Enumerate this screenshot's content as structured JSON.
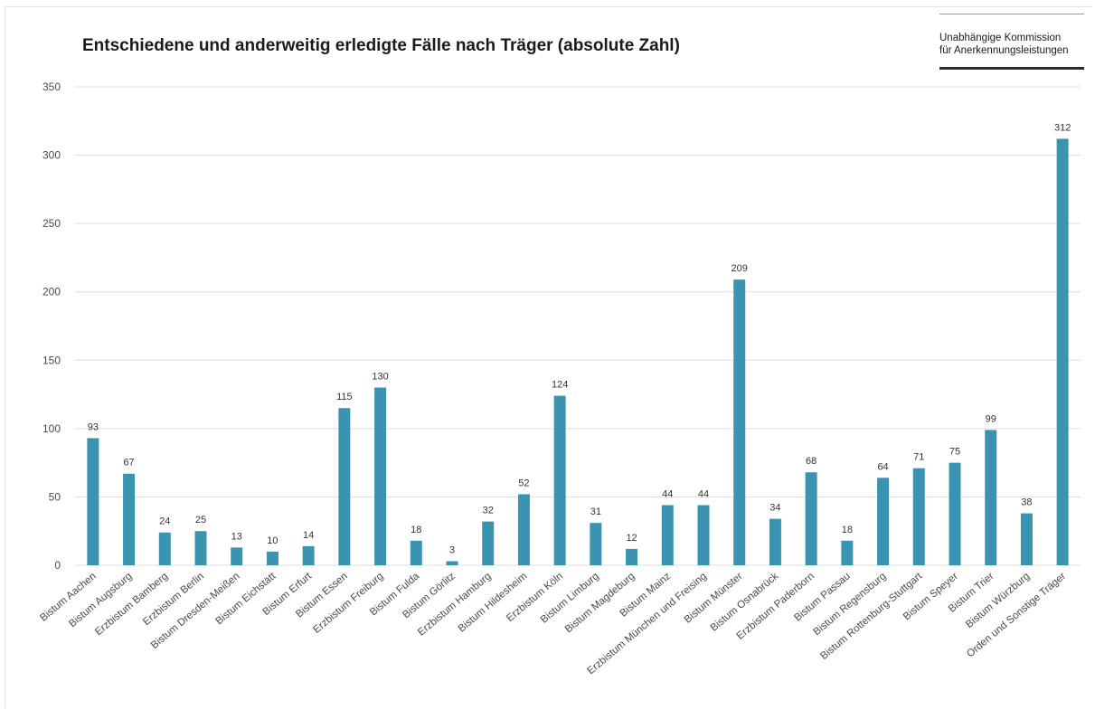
{
  "header": {
    "title": "Entschiedene und anderweitig erledigte Fälle nach Träger (absolute Zahl)",
    "brand_line1": "Unabhängige Kommission",
    "brand_line2": "für Anerkennungsleistungen"
  },
  "colors": {
    "bar": "#3a93b0",
    "grid": "#dcdcdc",
    "axis_text": "#4a4a4a"
  },
  "chart_data": {
    "type": "bar",
    "title": "Entschiedene und anderweitig erledigte Fälle nach Träger (absolute Zahl)",
    "xlabel": "",
    "ylabel": "",
    "ylim": [
      0,
      350
    ],
    "yticks": [
      0,
      50,
      100,
      150,
      200,
      250,
      300,
      350
    ],
    "grid": true,
    "data_labels": true,
    "categories": [
      "Bistum Aachen",
      "Bistum Augsburg",
      "Erzbistum Bamberg",
      "Erzbistum Berlin",
      "Bistum Dresden-Meißen",
      "Bistum Eichstätt",
      "Bistum Erfurt",
      "Bistum Essen",
      "Erzbistum Freiburg",
      "Bistum Fulda",
      "Bistum Görlitz",
      "Erzbistum Hamburg",
      "Bistum Hildesheim",
      "Erzbistum Köln",
      "Bistum Limburg",
      "Bistum Magdeburg",
      "Bistum Mainz",
      "Erzbistum München und Freising",
      "Bistum Münster",
      "Bistum Osnabrück",
      "Erzbistum Paderborn",
      "Bistum Passau",
      "Bistum Regensburg",
      "Bistum Rottenburg-Stuttgart",
      "Bistum Speyer",
      "Bistum Trier",
      "Bistum Würzburg",
      "Orden und Sonstige Träger"
    ],
    "values": [
      93,
      67,
      24,
      25,
      13,
      10,
      14,
      115,
      130,
      18,
      3,
      32,
      52,
      124,
      31,
      12,
      44,
      44,
      209,
      34,
      68,
      18,
      64,
      71,
      75,
      99,
      38,
      312
    ]
  }
}
